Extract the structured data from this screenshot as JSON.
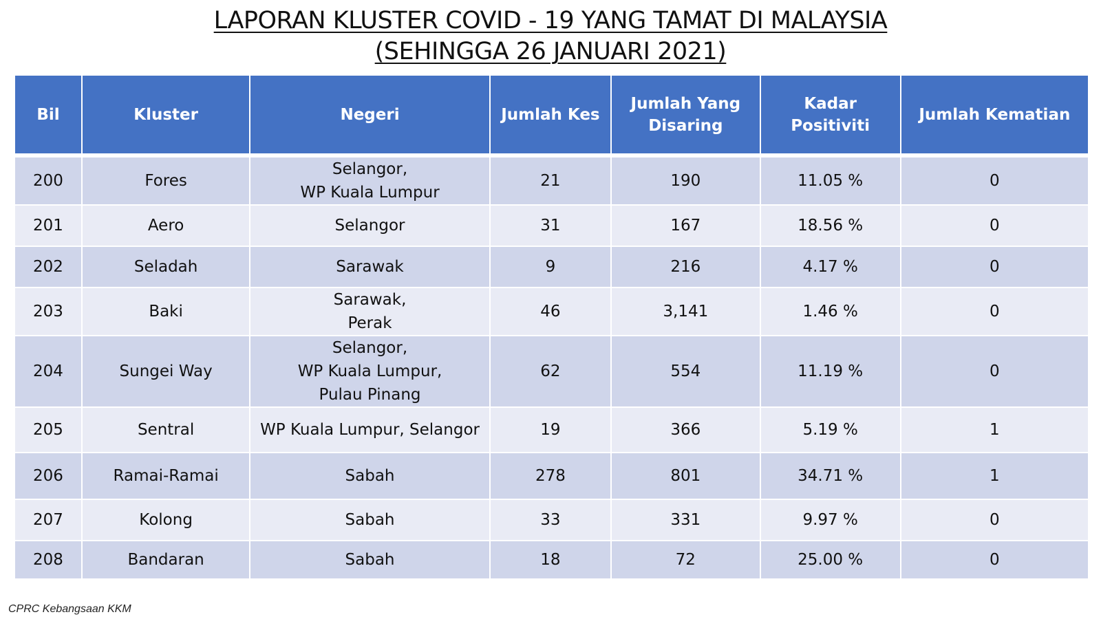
{
  "title": {
    "line1": "LAPORAN KLUSTER COVID - 19 YANG TAMAT DI MALAYSIA",
    "line2": "(SEHINGGA 26 JANUARI 2021)"
  },
  "table": {
    "headers": [
      "Bil",
      "Kluster",
      "Negeri",
      "Jumlah Kes",
      "Jumlah Yang Disaring",
      "Kadar Positiviti",
      "Jumlah Kematian"
    ],
    "rows": [
      {
        "bil": "200",
        "kluster": "Fores",
        "negeri": [
          "Selangor,",
          "WP Kuala Lumpur"
        ],
        "kes": "21",
        "disaring": "190",
        "positiviti": "11.05 %",
        "kematian": "0"
      },
      {
        "bil": "201",
        "kluster": "Aero",
        "negeri": [
          "Selangor"
        ],
        "kes": "31",
        "disaring": "167",
        "positiviti": "18.56 %",
        "kematian": "0"
      },
      {
        "bil": "202",
        "kluster": "Seladah",
        "negeri": [
          "Sarawak"
        ],
        "kes": "9",
        "disaring": "216",
        "positiviti": "4.17 %",
        "kematian": "0"
      },
      {
        "bil": "203",
        "kluster": "Baki",
        "negeri": [
          "Sarawak,",
          "Perak"
        ],
        "kes": "46",
        "disaring": "3,141",
        "positiviti": "1.46 %",
        "kematian": "0"
      },
      {
        "bil": "204",
        "kluster": "Sungei Way",
        "negeri": [
          "Selangor,",
          "WP Kuala Lumpur,",
          "Pulau Pinang"
        ],
        "kes": "62",
        "disaring": "554",
        "positiviti": "11.19 %",
        "kematian": "0"
      },
      {
        "bil": "205",
        "kluster": "Sentral",
        "negeri": [
          "WP Kuala Lumpur, Selangor"
        ],
        "kes": "19",
        "disaring": "366",
        "positiviti": "5.19 %",
        "kematian": "1"
      },
      {
        "bil": "206",
        "kluster": "Ramai-Ramai",
        "negeri": [
          "Sabah"
        ],
        "kes": "278",
        "disaring": "801",
        "positiviti": "34.71 %",
        "kematian": "1"
      },
      {
        "bil": "207",
        "kluster": "Kolong",
        "negeri": [
          "Sabah"
        ],
        "kes": "33",
        "disaring": "331",
        "positiviti": "9.97 %",
        "kematian": "0"
      },
      {
        "bil": "208",
        "kluster": "Bandaran",
        "negeri": [
          "Sabah"
        ],
        "kes": "18",
        "disaring": "72",
        "positiviti": "25.00 %",
        "kematian": "0"
      }
    ]
  },
  "footer": {
    "source": "CPRC Kebangsaan KKM"
  },
  "colors": {
    "header_bg": "#4472c4",
    "row_odd": "#cfd5ea",
    "row_even": "#e9ebf5"
  }
}
